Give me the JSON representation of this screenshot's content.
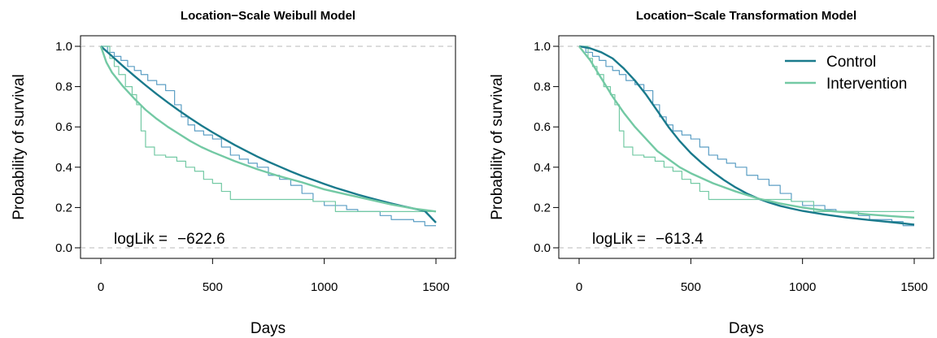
{
  "chart_data": [
    {
      "type": "line",
      "title": "Location−Scale Weibull Model",
      "xlabel": "Days",
      "ylabel": "Probability of survival",
      "xlim": [
        0,
        1500
      ],
      "ylim": [
        0,
        1
      ],
      "x_ticks": [
        "0",
        "500",
        "1000",
        "1500"
      ],
      "y_ticks": [
        "0.0",
        "0.2",
        "0.4",
        "0.6",
        "0.8",
        "1.0"
      ],
      "reference_lines_y": [
        0,
        1
      ],
      "annotation": {
        "label": "logLik =",
        "value": "−622.6"
      },
      "legend": null,
      "series": [
        {
          "name": "Control",
          "kind": "model",
          "color": "#1a7a8c",
          "x": [
            0,
            50,
            100,
            150,
            200,
            250,
            300,
            350,
            400,
            450,
            500,
            550,
            600,
            650,
            700,
            750,
            800,
            850,
            900,
            950,
            1000,
            1050,
            1100,
            1150,
            1200,
            1250,
            1300,
            1350,
            1400,
            1450,
            1500
          ],
          "y": [
            1.0,
            0.951,
            0.901,
            0.853,
            0.807,
            0.763,
            0.721,
            0.681,
            0.643,
            0.607,
            0.573,
            0.541,
            0.51,
            0.481,
            0.453,
            0.427,
            0.403,
            0.379,
            0.357,
            0.337,
            0.317,
            0.298,
            0.281,
            0.264,
            0.249,
            0.234,
            0.22,
            0.207,
            0.195,
            0.183,
            0.125
          ]
        },
        {
          "name": "Intervention",
          "kind": "model",
          "color": "#73c9a4",
          "x": [
            0,
            25,
            50,
            100,
            150,
            200,
            250,
            300,
            350,
            400,
            450,
            500,
            600,
            700,
            800,
            900,
            1000,
            1100,
            1200,
            1300,
            1400,
            1500
          ],
          "y": [
            1.0,
            0.92,
            0.87,
            0.8,
            0.74,
            0.685,
            0.64,
            0.6,
            0.565,
            0.53,
            0.5,
            0.475,
            0.43,
            0.39,
            0.355,
            0.325,
            0.29,
            0.265,
            0.24,
            0.215,
            0.195,
            0.18
          ]
        },
        {
          "name": "Control",
          "kind": "kaplan-meier",
          "color": "#5b9ec4",
          "x": [
            0,
            30,
            60,
            90,
            120,
            150,
            180,
            210,
            250,
            290,
            330,
            360,
            390,
            420,
            460,
            500,
            540,
            580,
            620,
            660,
            700,
            750,
            800,
            850,
            900,
            950,
            1000,
            1050,
            1100,
            1150,
            1200,
            1250,
            1300,
            1400,
            1450,
            1500
          ],
          "y": [
            1.0,
            0.97,
            0.95,
            0.93,
            0.9,
            0.88,
            0.86,
            0.83,
            0.81,
            0.78,
            0.71,
            0.65,
            0.61,
            0.58,
            0.56,
            0.54,
            0.5,
            0.46,
            0.44,
            0.42,
            0.4,
            0.36,
            0.34,
            0.31,
            0.27,
            0.23,
            0.21,
            0.21,
            0.19,
            0.18,
            0.18,
            0.16,
            0.14,
            0.13,
            0.11,
            0.11
          ]
        },
        {
          "name": "Intervention",
          "kind": "kaplan-meier",
          "color": "#73c9a4",
          "x": [
            0,
            40,
            60,
            80,
            110,
            140,
            160,
            180,
            200,
            240,
            290,
            340,
            380,
            420,
            460,
            500,
            540,
            580,
            650,
            750,
            850,
            950,
            1050,
            1150,
            1250,
            1350,
            1500
          ],
          "y": [
            1.0,
            0.94,
            0.9,
            0.86,
            0.8,
            0.76,
            0.71,
            0.58,
            0.5,
            0.46,
            0.45,
            0.43,
            0.4,
            0.38,
            0.34,
            0.32,
            0.28,
            0.24,
            0.24,
            0.24,
            0.24,
            0.23,
            0.18,
            0.18,
            0.18,
            0.18,
            0.18
          ]
        }
      ]
    },
    {
      "type": "line",
      "title": "Location−Scale Transformation Model",
      "xlabel": "Days",
      "ylabel": "Probability of survival",
      "xlim": [
        0,
        1500
      ],
      "ylim": [
        0,
        1
      ],
      "x_ticks": [
        "0",
        "500",
        "1000",
        "1500"
      ],
      "y_ticks": [
        "0.0",
        "0.2",
        "0.4",
        "0.6",
        "0.8",
        "1.0"
      ],
      "reference_lines_y": [
        0,
        1
      ],
      "annotation": {
        "label": "logLik =",
        "value": "−613.4"
      },
      "legend": {
        "position": "top-right",
        "entries": [
          "Control",
          "Intervention"
        ]
      },
      "series": [
        {
          "name": "Control",
          "kind": "model",
          "color": "#1a7a8c",
          "x": [
            0,
            50,
            100,
            150,
            200,
            250,
            300,
            350,
            400,
            450,
            500,
            550,
            600,
            650,
            700,
            750,
            800,
            850,
            900,
            950,
            1000,
            1100,
            1200,
            1300,
            1400,
            1500
          ],
          "y": [
            1.0,
            0.99,
            0.97,
            0.94,
            0.89,
            0.83,
            0.76,
            0.68,
            0.6,
            0.53,
            0.47,
            0.42,
            0.375,
            0.335,
            0.3,
            0.27,
            0.245,
            0.225,
            0.208,
            0.195,
            0.183,
            0.165,
            0.15,
            0.138,
            0.127,
            0.115
          ]
        },
        {
          "name": "Intervention",
          "kind": "model",
          "color": "#73c9a4",
          "x": [
            0,
            50,
            100,
            150,
            200,
            250,
            300,
            350,
            400,
            450,
            500,
            600,
            700,
            800,
            900,
            1000,
            1100,
            1200,
            1300,
            1400,
            1500
          ],
          "y": [
            1.0,
            0.93,
            0.84,
            0.75,
            0.67,
            0.6,
            0.54,
            0.48,
            0.44,
            0.4,
            0.37,
            0.32,
            0.28,
            0.245,
            0.22,
            0.2,
            0.185,
            0.175,
            0.165,
            0.157,
            0.15
          ]
        },
        {
          "name": "Control",
          "kind": "kaplan-meier",
          "color": "#5b9ec4",
          "x": [
            0,
            30,
            60,
            90,
            120,
            150,
            180,
            210,
            250,
            290,
            330,
            360,
            390,
            420,
            460,
            500,
            540,
            580,
            620,
            660,
            700,
            750,
            800,
            850,
            900,
            950,
            1000,
            1050,
            1100,
            1150,
            1200,
            1250,
            1300,
            1400,
            1450,
            1500
          ],
          "y": [
            1.0,
            0.97,
            0.95,
            0.93,
            0.9,
            0.88,
            0.86,
            0.83,
            0.81,
            0.78,
            0.71,
            0.65,
            0.61,
            0.58,
            0.56,
            0.54,
            0.5,
            0.46,
            0.44,
            0.42,
            0.4,
            0.36,
            0.34,
            0.31,
            0.27,
            0.23,
            0.21,
            0.21,
            0.19,
            0.18,
            0.18,
            0.16,
            0.14,
            0.13,
            0.11,
            0.11
          ]
        },
        {
          "name": "Intervention",
          "kind": "kaplan-meier",
          "color": "#73c9a4",
          "x": [
            0,
            40,
            60,
            80,
            110,
            140,
            160,
            180,
            200,
            240,
            290,
            340,
            380,
            420,
            460,
            500,
            540,
            580,
            650,
            750,
            850,
            950,
            1050,
            1150,
            1250,
            1350,
            1500
          ],
          "y": [
            1.0,
            0.94,
            0.9,
            0.86,
            0.8,
            0.76,
            0.71,
            0.58,
            0.5,
            0.46,
            0.45,
            0.43,
            0.4,
            0.38,
            0.34,
            0.32,
            0.28,
            0.24,
            0.24,
            0.24,
            0.24,
            0.23,
            0.18,
            0.18,
            0.18,
            0.18,
            0.18
          ]
        }
      ]
    }
  ]
}
